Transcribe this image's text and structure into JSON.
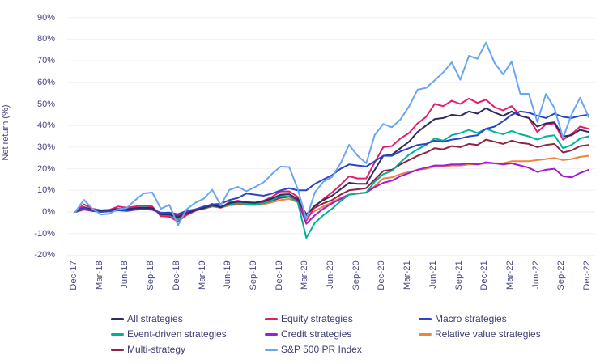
{
  "chart_data": {
    "type": "line",
    "title": "",
    "xlabel": "",
    "ylabel": "Net return (%)",
    "ylim": [
      -20,
      90
    ],
    "ytick_step": 10,
    "ytick_suffix": "%",
    "grid": "horizontal-only",
    "x_unit": "month",
    "x_tick_labels": [
      "Dec-17",
      "Mar-18",
      "Jun-18",
      "Sep-18",
      "Dec-18",
      "Mar-19",
      "Jun-19",
      "Sep-19",
      "Dec-19",
      "Mar-20",
      "Jun-20",
      "Sep-20",
      "Dec-20",
      "Mar-21",
      "Jun-21",
      "Sep-21",
      "Dec-21",
      "Mar-22",
      "Jun-22",
      "Sep-22",
      "Dec-22"
    ],
    "x_ticks_every_n_points": 3,
    "legend_position": "bottom",
    "series": [
      {
        "name": "Relative value strategies",
        "color": "#eb8440",
        "values": [
          0,
          1,
          0.5,
          0.3,
          0.5,
          0.8,
          0.6,
          1,
          1.2,
          1,
          -0.3,
          -0.5,
          -1.2,
          0,
          0.8,
          1.5,
          2.5,
          2,
          3,
          3.5,
          3.3,
          3.2,
          3.6,
          4.5,
          5.5,
          6,
          4.5,
          -2.5,
          0.5,
          2.5,
          4.5,
          6.5,
          8,
          8.5,
          9,
          12,
          15.5,
          16,
          17.5,
          18.5,
          19.5,
          20,
          21,
          21,
          21.5,
          21.5,
          22,
          22,
          22.5,
          22.5,
          22.5,
          23.5,
          23.5,
          23.5,
          24,
          24.5,
          25,
          24,
          24.5,
          25.5,
          26
        ]
      },
      {
        "name": "Credit strategies",
        "color": "#a41bd6",
        "values": [
          0,
          1.2,
          0.5,
          0.3,
          0.5,
          1,
          0.8,
          1.2,
          1.5,
          1.3,
          -0.5,
          -0.8,
          -1.8,
          -0.3,
          1,
          1.8,
          3,
          2.5,
          3.8,
          4.5,
          4.2,
          4,
          4.5,
          5.5,
          7,
          7.2,
          5,
          -5.5,
          -1.5,
          1.5,
          4,
          6,
          8,
          8.5,
          9,
          11.5,
          13.5,
          14.5,
          16.5,
          18,
          19.5,
          20.5,
          21.5,
          21.5,
          22,
          22,
          22.5,
          22,
          23,
          22.5,
          22,
          22.5,
          21.5,
          20.5,
          18.5,
          19.5,
          20,
          16.5,
          16,
          18,
          19.5
        ]
      },
      {
        "name": "Multi-strategy",
        "color": "#8f2448",
        "values": [
          0,
          1.5,
          0.8,
          0.5,
          0.8,
          1.2,
          1,
          1.5,
          1.8,
          1.5,
          -0.8,
          -1,
          -2,
          -0.5,
          0.8,
          1.5,
          2.8,
          2.2,
          3.5,
          4,
          3.8,
          3.6,
          4.2,
          5.2,
          6.5,
          7,
          5.5,
          -1,
          2,
          4,
          5.5,
          8,
          10,
          10.5,
          11,
          15,
          19,
          19.5,
          22,
          24,
          26,
          27.5,
          29.5,
          29,
          30.5,
          30,
          31.5,
          31,
          33.5,
          32.5,
          31.5,
          33,
          32,
          31.5,
          30,
          31,
          31.5,
          27.5,
          28.5,
          30.5,
          31
        ]
      },
      {
        "name": "Event-driven strategies",
        "color": "#00b295",
        "values": [
          0,
          1.8,
          0.8,
          0.3,
          0.8,
          1.5,
          1.2,
          1.8,
          2.2,
          2,
          -1.5,
          -1.8,
          -3.5,
          -1,
          1,
          1.5,
          3,
          2,
          3.5,
          4.2,
          3.8,
          3.5,
          4,
          5.5,
          7.5,
          7,
          4.5,
          -12,
          -5,
          -1.5,
          1.5,
          5,
          8,
          8.5,
          9,
          14,
          17.5,
          19,
          23,
          26.5,
          29,
          31,
          34,
          33,
          35.5,
          36.5,
          38,
          36.5,
          38.5,
          37,
          36,
          37.5,
          36,
          35,
          33.5,
          35,
          35.5,
          29.5,
          31,
          34,
          35
        ]
      },
      {
        "name": "Equity strategies",
        "color": "#e31d6d",
        "values": [
          0,
          3.5,
          1.5,
          0.8,
          1,
          2.5,
          2,
          2.5,
          3,
          2.5,
          -2,
          -2.2,
          -4.5,
          -1.5,
          0.5,
          1.8,
          3.8,
          2,
          4.5,
          5.2,
          4.5,
          4.2,
          5.2,
          7,
          9.5,
          9.5,
          7,
          -4,
          2.5,
          6,
          9,
          12.5,
          16.5,
          15.5,
          15.5,
          23,
          30,
          30.5,
          34,
          36.5,
          41,
          44,
          50,
          49,
          51.5,
          50,
          52.5,
          50.5,
          52,
          48.5,
          47,
          49,
          44.5,
          43.5,
          37,
          40.5,
          41,
          33.5,
          36,
          39.5,
          38.5
        ]
      },
      {
        "name": "All strategies",
        "color": "#2e2c5e",
        "values": [
          0,
          2.2,
          1,
          0.5,
          0.8,
          1.5,
          1.2,
          1.8,
          2,
          1.8,
          -1,
          -1.2,
          -2.5,
          -0.8,
          0.8,
          1.8,
          3.2,
          2.2,
          4,
          4.8,
          4.5,
          4.3,
          5,
          6.2,
          8,
          8.2,
          6,
          -1.5,
          3,
          5.5,
          7.5,
          10.5,
          13.5,
          13,
          13,
          19.5,
          26,
          26.5,
          29.5,
          32.5,
          37,
          40,
          43,
          43.5,
          45,
          44.5,
          46.5,
          45.5,
          48,
          46,
          44.5,
          46.5,
          44.5,
          43.5,
          39.5,
          41,
          41.5,
          35,
          35.5,
          38,
          37
        ]
      },
      {
        "name": "Macro strategies",
        "color": "#2a46c6",
        "values": [
          0,
          2,
          0.5,
          0,
          0.3,
          0.8,
          0.5,
          1,
          1.2,
          1,
          -0.5,
          -0.3,
          -1,
          0.5,
          1.2,
          2.5,
          3.5,
          3.8,
          5.5,
          6.5,
          8.5,
          8,
          7.5,
          8.5,
          10,
          11,
          10,
          10,
          13,
          15,
          17,
          20,
          22,
          21.5,
          21,
          23.5,
          26,
          26,
          28,
          29.5,
          31,
          31.5,
          33,
          32.5,
          33.5,
          34,
          35,
          35.5,
          38.5,
          39.5,
          42,
          45,
          46.5,
          46,
          44.5,
          43.5,
          45.5,
          44,
          43.5,
          44.5,
          45
        ]
      },
      {
        "name": "S&P 500 PR Index",
        "color": "#6aa5f3",
        "values": [
          0,
          5.6,
          1.5,
          -1.2,
          -0.8,
          1.3,
          1.8,
          5.5,
          8.6,
          9,
          1.5,
          3.3,
          -6.2,
          1.2,
          4.2,
          6.1,
          10.3,
          3.1,
          10.2,
          11.6,
          9.6,
          11.5,
          13.7,
          17.6,
          21,
          20.8,
          10.6,
          -3.3,
          9.1,
          14,
          16.1,
          22.5,
          31.1,
          26,
          22.5,
          35.7,
          40.7,
          39.2,
          42.8,
          48.8,
          56.6,
          57.4,
          60.9,
          64.6,
          69.3,
          61.2,
          72.3,
          70.9,
          78.4,
          69,
          63.7,
          69.6,
          54.7,
          54.7,
          41.7,
          54.6,
          48.1,
          34.3,
          45.1,
          52.9,
          43.9
        ]
      }
    ]
  },
  "legend": {
    "columns": [
      [
        "All strategies",
        "Event-driven strategies",
        "Multi-strategy"
      ],
      [
        "Equity strategies",
        "Credit strategies",
        "S&P 500 PR Index"
      ],
      [
        "Macro strategies",
        "Relative value strategies"
      ]
    ]
  },
  "colors": {
    "axis_text": "#45457e",
    "legend_text": "#3c3c70",
    "gridline": "#f0f0f5",
    "background": "#ffffff"
  }
}
